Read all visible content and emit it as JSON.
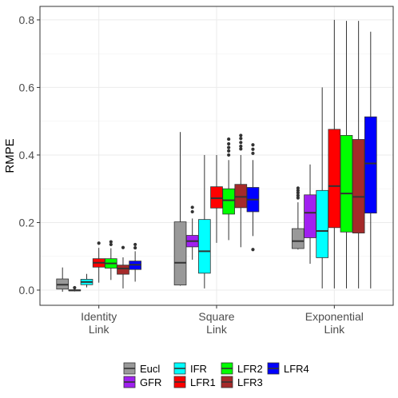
{
  "chart_data": {
    "type": "box",
    "ylabel": "RMPE",
    "ylim": [
      -0.045,
      0.84
    ],
    "yticks": [
      "0.0",
      "0.2",
      "0.4",
      "0.6",
      "0.8"
    ],
    "ytick_values": [
      0.0,
      0.2,
      0.4,
      0.6,
      0.8
    ],
    "grid": true,
    "legend_position": "bottom",
    "categories": [
      {
        "line1": "Identity",
        "line2": "Link"
      },
      {
        "line1": "Square",
        "line2": "Link"
      },
      {
        "line1": "Exponential",
        "line2": "Link"
      }
    ],
    "series": [
      {
        "name": "Eucl",
        "color": "#999999",
        "boxes": [
          {
            "lower": -0.005,
            "q1": 0.003,
            "median": 0.016,
            "q3": 0.033,
            "upper": 0.067,
            "outliers": []
          },
          {
            "lower": 0.013,
            "q1": 0.015,
            "median": 0.081,
            "q3": 0.202,
            "upper": 0.468,
            "outliers": []
          },
          {
            "lower": 0.12,
            "q1": 0.123,
            "median": 0.145,
            "q3": 0.182,
            "upper": 0.26,
            "outliers": [
              0.273,
              0.28,
              0.288,
              0.295,
              0.302
            ]
          }
        ]
      },
      {
        "name": "GFR",
        "color": "#A020F0",
        "boxes": [
          {
            "lower": -0.004,
            "q1": -0.002,
            "median": -0.001,
            "q3": 0.001,
            "upper": 0.003,
            "outliers": [
              0.007
            ]
          },
          {
            "lower": 0.09,
            "q1": 0.128,
            "median": 0.145,
            "q3": 0.162,
            "upper": 0.212,
            "outliers": [
              0.232,
              0.245
            ]
          },
          {
            "lower": 0.078,
            "q1": 0.155,
            "median": 0.229,
            "q3": 0.282,
            "upper": 0.372,
            "outliers": []
          }
        ]
      },
      {
        "name": "IFR",
        "color": "#00FFFF",
        "boxes": [
          {
            "lower": 0.008,
            "q1": 0.016,
            "median": 0.024,
            "q3": 0.032,
            "upper": 0.048,
            "outliers": []
          },
          {
            "lower": 0.005,
            "q1": 0.05,
            "median": 0.115,
            "q3": 0.209,
            "upper": 0.4,
            "outliers": []
          },
          {
            "lower": 0.005,
            "q1": 0.096,
            "median": 0.175,
            "q3": 0.295,
            "upper": 0.6,
            "outliers": []
          }
        ]
      },
      {
        "name": "LFR1",
        "color": "#FF0000",
        "boxes": [
          {
            "lower": 0.022,
            "q1": 0.068,
            "median": 0.081,
            "q3": 0.093,
            "upper": 0.125,
            "outliers": [
              0.139
            ]
          },
          {
            "lower": 0.14,
            "q1": 0.243,
            "median": 0.272,
            "q3": 0.306,
            "upper": 0.4,
            "outliers": []
          },
          {
            "lower": 0.005,
            "q1": 0.185,
            "median": 0.308,
            "q3": 0.476,
            "upper": 0.8,
            "outliers": []
          }
        ]
      },
      {
        "name": "LFR2",
        "color": "#00FF00",
        "boxes": [
          {
            "lower": 0.03,
            "q1": 0.065,
            "median": 0.079,
            "q3": 0.093,
            "upper": 0.124,
            "outliers": [
              0.135,
              0.143
            ]
          },
          {
            "lower": 0.148,
            "q1": 0.225,
            "median": 0.266,
            "q3": 0.3,
            "upper": 0.385,
            "outliers": [
              0.4,
              0.412,
              0.422,
              0.433,
              0.447
            ]
          },
          {
            "lower": 0.005,
            "q1": 0.172,
            "median": 0.286,
            "q3": 0.458,
            "upper": 0.797,
            "outliers": []
          }
        ]
      },
      {
        "name": "LFR3",
        "color": "#A52A2A",
        "boxes": [
          {
            "lower": 0.005,
            "q1": 0.047,
            "median": 0.064,
            "q3": 0.074,
            "upper": 0.097,
            "outliers": [
              0.126
            ]
          },
          {
            "lower": 0.127,
            "q1": 0.244,
            "median": 0.276,
            "q3": 0.313,
            "upper": 0.4,
            "outliers": [
              0.418,
              0.426,
              0.437,
              0.449,
              0.458
            ]
          },
          {
            "lower": 0.005,
            "q1": 0.169,
            "median": 0.276,
            "q3": 0.446,
            "upper": 0.797,
            "outliers": []
          }
        ]
      },
      {
        "name": "LFR4",
        "color": "#0000FF",
        "boxes": [
          {
            "lower": 0.025,
            "q1": 0.061,
            "median": 0.075,
            "q3": 0.086,
            "upper": 0.115,
            "outliers": [
              0.125,
              0.135
            ]
          },
          {
            "lower": 0.16,
            "q1": 0.232,
            "median": 0.268,
            "q3": 0.304,
            "upper": 0.385,
            "outliers": [
              0.405,
              0.417,
              0.43,
              0.12
            ]
          },
          {
            "lower": 0.005,
            "q1": 0.228,
            "median": 0.375,
            "q3": 0.513,
            "upper": 0.765,
            "outliers": []
          }
        ]
      }
    ]
  }
}
